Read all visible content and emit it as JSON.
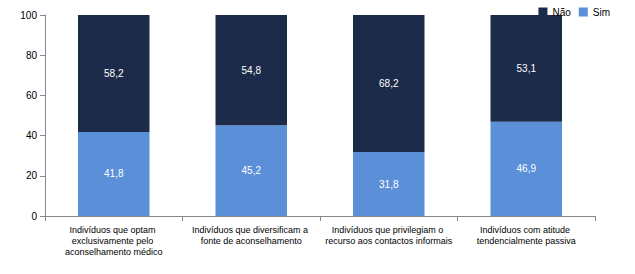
{
  "chart_data": {
    "type": "bar",
    "stacked": true,
    "data_labels": true,
    "grid": false,
    "legend": "top-right",
    "categories": [
      "Indivíduos que optam exclusivamente pelo aconselhamento médico",
      "Indivíduos que diversificam a fonte de aconselhamento",
      "Indivíduos que privilegiam o recurso aos contactos informais",
      "Indivíduos com atitude tendencialmente passiva"
    ],
    "series": [
      {
        "name": "Sim",
        "color": "#5b8fd8",
        "values": [
          41.8,
          45.2,
          31.8,
          46.9
        ],
        "value_labels": [
          "41,8",
          "45,2",
          "31,8",
          "46,9"
        ]
      },
      {
        "name": "Não",
        "color": "#1d2b4a",
        "values": [
          58.2,
          54.8,
          68.2,
          53.1
        ],
        "value_labels": [
          "58,2",
          "54,8",
          "68,2",
          "53,1"
        ]
      }
    ],
    "ylim": [
      0,
      100
    ],
    "yticks": [
      0,
      20,
      40,
      60,
      80,
      100
    ]
  }
}
